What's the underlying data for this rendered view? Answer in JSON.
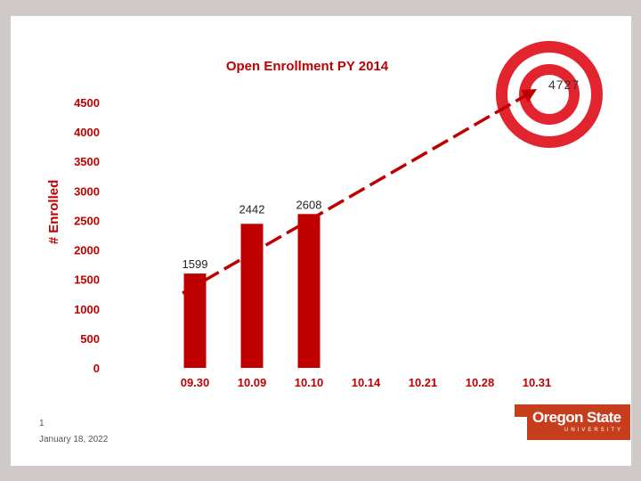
{
  "colors": {
    "bar": "#c00000",
    "arrow": "#c00000",
    "target_ring": "#e2242f",
    "logo": "#c73e1d"
  },
  "icons": {
    "target": "bullseye-target-icon"
  },
  "chart_data": {
    "type": "bar",
    "title": "Open Enrollment PY 2014",
    "ylabel": "# Enrolled",
    "xlabel": "",
    "ylim": [
      0,
      4500
    ],
    "yticks": [
      "0",
      "500",
      "1000",
      "1500",
      "2000",
      "2500",
      "3000",
      "3500",
      "4000",
      "4500"
    ],
    "categories": [
      "09.30",
      "10.09",
      "10.10",
      "10.14",
      "10.21",
      "10.28",
      "10.31"
    ],
    "values": [
      1599,
      2442,
      2608,
      null,
      null,
      null,
      null
    ],
    "data_labels": [
      "1599",
      "2442",
      "2608",
      "",
      "",
      "",
      ""
    ],
    "target": {
      "value": 4727,
      "label": "4727"
    },
    "grid": false,
    "legend": "none"
  },
  "footer": {
    "slide_number": "1",
    "date": "January 18, 2022"
  },
  "logo": {
    "name": "Oregon State",
    "sub": "UNIVERSITY"
  }
}
